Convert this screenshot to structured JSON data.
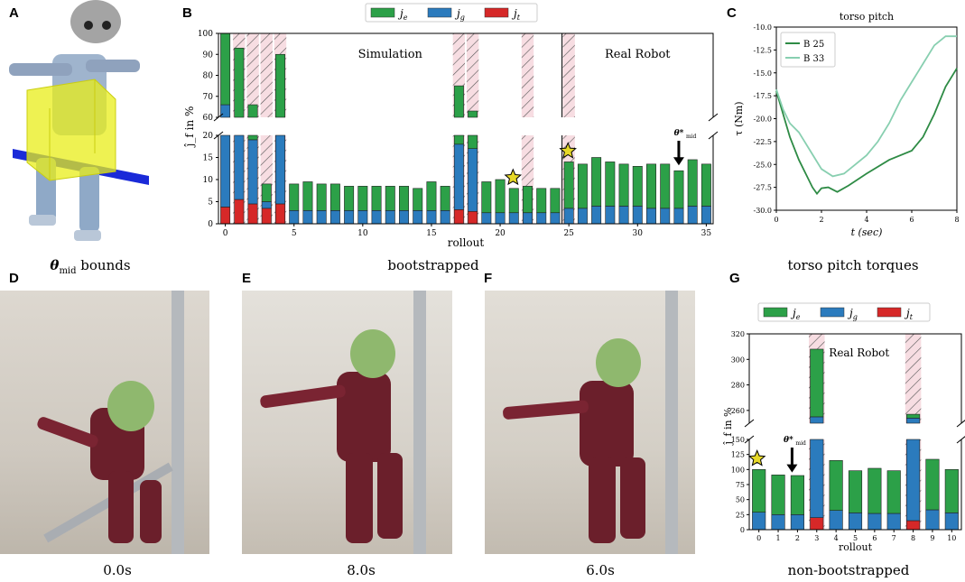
{
  "panels": {
    "A": {
      "letter": "A",
      "caption_symbol": "θ",
      "caption_sub": "mid",
      "caption_text": " bounds"
    },
    "B": {
      "letter": "B",
      "caption": "bootstrapped"
    },
    "C": {
      "letter": "C",
      "caption": "torso pitch torques"
    },
    "D": {
      "letter": "D",
      "caption": "0.0s"
    },
    "E": {
      "letter": "E",
      "caption": "8.0s"
    },
    "F": {
      "letter": "F",
      "caption": "6.0s"
    },
    "G": {
      "letter": "G",
      "caption": "non-bootstrapped"
    }
  },
  "colors": {
    "je": "#2ca048",
    "jg": "#2b7bbd",
    "jt": "#d62828",
    "hatch_bg": "#f7dde2",
    "hatch_line": "#555555",
    "star": "#e6d829",
    "robot_dark": "#6b1f2b",
    "helmet": "#8fb86e"
  },
  "chart_data": [
    {
      "id": "B",
      "type": "bar",
      "stacked": true,
      "broken_y_axis": true,
      "legend": [
        "j_e",
        "j_g",
        "j_t"
      ],
      "legend_placement": "top-center",
      "xlabel": "rollout",
      "ylabel": "ĵ_f in %",
      "upper_ylim": [
        60,
        100
      ],
      "lower_ylim": [
        0,
        20
      ],
      "upper_yticks": [
        "60",
        "70",
        "80",
        "90",
        "100"
      ],
      "lower_yticks": [
        "0",
        "5",
        "10",
        "15",
        "20"
      ],
      "xticks": [
        "0",
        "5",
        "10",
        "15",
        "20",
        "25",
        "30",
        "35"
      ],
      "regions": [
        {
          "label": "Simulation",
          "x_start": -0.5,
          "x_end": 24.5
        },
        {
          "label": "Real Robot",
          "x_start": 24.5,
          "x_end": 35.5
        }
      ],
      "hatched_rollouts": [
        1,
        2,
        3,
        4,
        17,
        18,
        22,
        25
      ],
      "star_rollouts": [
        21,
        25
      ],
      "theta_mid_rollout": 33,
      "arrow_label": "θ*",
      "arrow_label_sub": "mid",
      "rollouts": [
        0,
        1,
        2,
        3,
        4,
        5,
        6,
        7,
        8,
        9,
        10,
        11,
        12,
        13,
        14,
        15,
        16,
        17,
        18,
        19,
        20,
        21,
        22,
        23,
        24,
        25,
        26,
        27,
        28,
        29,
        30,
        31,
        32,
        33,
        34,
        35
      ],
      "series": [
        {
          "name": "j_t",
          "values": [
            3.8,
            5.5,
            4.5,
            3.5,
            4.5,
            0,
            0,
            0,
            0,
            0,
            0,
            0,
            0,
            0,
            0,
            0,
            0,
            3.2,
            2.8,
            0,
            0,
            0,
            0,
            0,
            0,
            0,
            0,
            0,
            0,
            0,
            0,
            0,
            0,
            0,
            0,
            0
          ]
        },
        {
          "name": "j_g",
          "values": [
            62.2,
            15.5,
            14.5,
            1.5,
            15.5,
            3,
            3,
            3,
            3,
            3,
            3,
            3,
            3,
            3,
            3,
            3,
            3,
            14.8,
            14.2,
            2.5,
            2.5,
            2.5,
            2.5,
            2.5,
            2.5,
            3.5,
            3.5,
            4,
            4,
            4,
            4,
            3.5,
            3.5,
            3.5,
            4,
            4
          ]
        },
        {
          "name": "j_e",
          "values": [
            34,
            72,
            47,
            4,
            70,
            6,
            6.5,
            6,
            6,
            5.5,
            5.5,
            5.5,
            5.5,
            5.5,
            5,
            6.5,
            5.5,
            57,
            46,
            7,
            7.5,
            5.5,
            6,
            5.5,
            5.5,
            10.5,
            10,
            11,
            10,
            9.5,
            9,
            10,
            10,
            8.5,
            10.5,
            9.5
          ]
        }
      ]
    },
    {
      "id": "C",
      "type": "line",
      "title": "torso pitch",
      "xlabel": "t (sec)",
      "ylabel": "τ (Nm)",
      "xlim": [
        0,
        8
      ],
      "ylim": [
        -30,
        -10
      ],
      "xticks": [
        "0",
        "2",
        "4",
        "6",
        "8"
      ],
      "yticks": [
        "-10.0",
        "-12.5",
        "-15.0",
        "-17.5",
        "-20.0",
        "-22.5",
        "-25.0",
        "-27.5",
        "-30.0"
      ],
      "legend_placement": "top-left",
      "series": [
        {
          "name": "B 25",
          "color": "#2e8b45",
          "x": [
            0,
            0.3,
            0.6,
            1.0,
            1.3,
            1.6,
            1.8,
            2.0,
            2.3,
            2.7,
            3.2,
            4.0,
            5.0,
            6.0,
            6.5,
            7.0,
            7.5,
            8.0
          ],
          "y": [
            -17,
            -19.5,
            -22,
            -24.5,
            -26,
            -27.5,
            -28.2,
            -27.6,
            -27.5,
            -28,
            -27.3,
            -26,
            -24.5,
            -23.5,
            -22,
            -19.5,
            -16.5,
            -14.5
          ]
        },
        {
          "name": "B 33",
          "color": "#88cfb0",
          "x": [
            0,
            0.3,
            0.6,
            1.0,
            1.5,
            2.0,
            2.5,
            3.0,
            3.5,
            4.0,
            4.5,
            5.0,
            5.5,
            6.0,
            6.5,
            7.0,
            7.5,
            8.0
          ],
          "y": [
            -16.8,
            -19,
            -20.5,
            -21.5,
            -23.5,
            -25.5,
            -26.3,
            -26,
            -25,
            -24,
            -22.5,
            -20.5,
            -18,
            -16,
            -14,
            -12,
            -11,
            -11
          ]
        }
      ]
    },
    {
      "id": "G",
      "type": "bar",
      "stacked": true,
      "broken_y_axis": true,
      "legend": [
        "j_e",
        "j_g",
        "j_t"
      ],
      "legend_placement": "top-center",
      "xlabel": "rollout",
      "ylabel": "ĵ_f in %",
      "upper_ylim": [
        250,
        320
      ],
      "lower_ylim": [
        0,
        150
      ],
      "upper_yticks": [
        "260",
        "280",
        "300",
        "320"
      ],
      "lower_yticks": [
        "0",
        "25",
        "50",
        "75",
        "100",
        "125",
        "150"
      ],
      "xticks": [
        "0",
        "1",
        "2",
        "3",
        "4",
        "5",
        "6",
        "7",
        "8",
        "9",
        "10"
      ],
      "region_label": "Real Robot",
      "hatched_rollouts": [
        3,
        8
      ],
      "star_rollouts": [
        0
      ],
      "theta_mid_rollout": 2,
      "arrow_label": "θ*",
      "arrow_label_sub": "mid",
      "rollouts": [
        0,
        1,
        2,
        3,
        4,
        5,
        6,
        7,
        8,
        9,
        10
      ],
      "series": [
        {
          "name": "j_t",
          "values": [
            0,
            0,
            0,
            20,
            0,
            0,
            0,
            0,
            15,
            0,
            0
          ]
        },
        {
          "name": "j_g",
          "values": [
            29,
            25,
            25,
            235,
            32,
            28,
            27,
            27,
            239,
            33,
            28
          ]
        },
        {
          "name": "j_e",
          "values": [
            71,
            66,
            65,
            53,
            83,
            70,
            75,
            71,
            3,
            84,
            72
          ]
        }
      ]
    }
  ],
  "legend_labels": {
    "je": "j",
    "je_sub": "e",
    "jg": "j",
    "jg_sub": "g",
    "jt": "j",
    "jt_sub": "t"
  },
  "C_legend": {
    "b25": "B 25",
    "b33": "B 33"
  },
  "G_region": "Real Robot"
}
